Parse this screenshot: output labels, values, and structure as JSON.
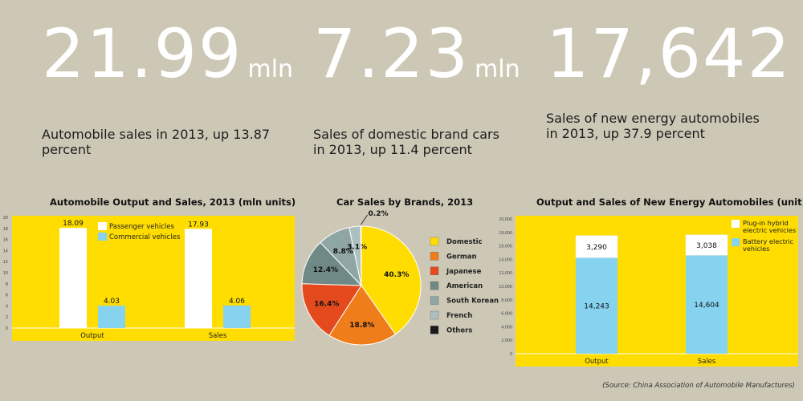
{
  "stats": [
    {
      "value": "21.99",
      "unit": "mln",
      "line1": "Automobile sales in 2013, up 13.87",
      "line2": "percent"
    },
    {
      "value": "7.23",
      "unit": "mln",
      "line1": "Sales of domestic brand cars",
      "line2": "in 2013, up 11.4 percent"
    },
    {
      "value": "17,642",
      "unit": "",
      "line1": "Sales of new energy automobiles",
      "line2": "in 2013, up 37.9 percent"
    }
  ],
  "source": "(Source: China Association of Automobile Manufactures)",
  "colors": {
    "yellow": "#ffdd00",
    "white": "#ffffff",
    "blue": "#86d3f0",
    "background": "#cdc8b6"
  },
  "chart_data": [
    {
      "type": "bar",
      "title": "Automobile Output and Sales, 2013 (mln units)",
      "categories": [
        "Output",
        "Sales"
      ],
      "series": [
        {
          "name": "Passenger vehicles",
          "values": [
            18.09,
            17.93
          ],
          "color": "#ffffff"
        },
        {
          "name": "Commercial vehicles",
          "values": [
            4.03,
            4.06
          ],
          "color": "#86d3f0"
        }
      ],
      "yticks": [
        0,
        2,
        4,
        6,
        8,
        10,
        12,
        14,
        16,
        18,
        20
      ],
      "ylim": [
        0,
        20
      ],
      "legend": "top-center"
    },
    {
      "type": "pie",
      "title": "Car Sales by Brands, 2013",
      "slices": [
        {
          "name": "Domestic",
          "value": 40.3,
          "label": "40.3%",
          "color": "#ffdd00"
        },
        {
          "name": "German",
          "value": 18.8,
          "label": "18.8%",
          "color": "#ee7d1a"
        },
        {
          "name": "Japanese",
          "value": 16.4,
          "label": "16.4%",
          "color": "#e44a1e"
        },
        {
          "name": "American",
          "value": 12.4,
          "label": "12.4%",
          "color": "#6f8a86"
        },
        {
          "name": "South Korean",
          "value": 8.8,
          "label": "8.8%",
          "color": "#90a6a4"
        },
        {
          "name": "French",
          "value": 3.1,
          "label": "3.1%",
          "color": "#aebfc0"
        },
        {
          "name": "Others",
          "value": 0.2,
          "label": "0.2%",
          "color": "#1a1a1a"
        }
      ],
      "legend": "right"
    },
    {
      "type": "bar",
      "stacked": true,
      "title": "Output and Sales of New Energy Automobiles (unit)",
      "categories": [
        "Output",
        "Sales"
      ],
      "series": [
        {
          "name": "Battery electric vehicles",
          "values": [
            14243,
            14604
          ],
          "labels": [
            "14,243",
            "14,604"
          ],
          "color": "#86d3f0"
        },
        {
          "name": "Plug-in hybrid electric vehicles",
          "values": [
            3290,
            3038
          ],
          "labels": [
            "3,290",
            "3,038"
          ],
          "color": "#ffffff"
        }
      ],
      "yticks": [
        "0",
        "2,000",
        "4,000",
        "6,000",
        "8,000",
        "10,000",
        "12,000",
        "14,000",
        "16,000",
        "18,000",
        "20,000"
      ],
      "ylim": [
        0,
        20000
      ],
      "legend": "top-right"
    }
  ]
}
